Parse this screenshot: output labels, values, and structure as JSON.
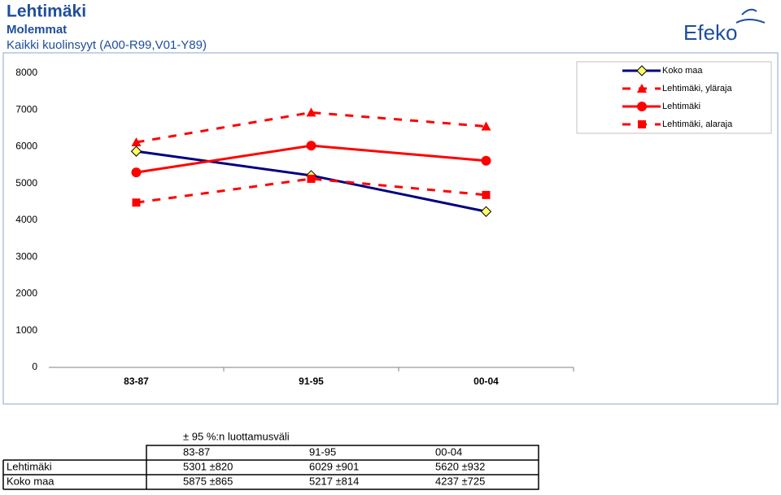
{
  "chart_data": {
    "type": "line",
    "title": "Lehtimäki",
    "subtitles": [
      "Molemmat",
      "Kaikki kuolinsyyt (A00-R99,V01-Y89)"
    ],
    "categories": [
      "83-87",
      "91-95",
      "00-04"
    ],
    "series": [
      {
        "name": "Koko maa",
        "color": "#000080",
        "dash": false,
        "marker": "diamond",
        "values": [
          5875,
          5217,
          4237
        ]
      },
      {
        "name": "Lehtimäki, yläraja",
        "color": "#ff0000",
        "dash": true,
        "marker": "triangle",
        "values": [
          6121,
          6930,
          6552
        ]
      },
      {
        "name": "Lehtimäki",
        "color": "#ff0000",
        "dash": false,
        "marker": "circle",
        "values": [
          5301,
          6029,
          5620
        ]
      },
      {
        "name": "Lehtimäki, alaraja",
        "color": "#ff0000",
        "dash": true,
        "marker": "square",
        "values": [
          4481,
          5128,
          4688
        ]
      }
    ],
    "ylim": [
      0,
      8000
    ],
    "yticks": [
      0,
      1000,
      2000,
      3000,
      4000,
      5000,
      6000,
      7000,
      8000
    ],
    "legend": "top-right"
  },
  "logo": "Efeko",
  "table": {
    "caption": "± 95 %:n luottamusväli",
    "header": [
      "83-87",
      "91-95",
      "00-04"
    ],
    "rows": [
      [
        "Lehtimäki",
        "5301 ±820",
        "6029 ±901",
        "5620 ±932"
      ],
      [
        "Koko maa",
        "5875 ±865",
        "5217 ±814",
        "4237 ±725"
      ]
    ]
  }
}
